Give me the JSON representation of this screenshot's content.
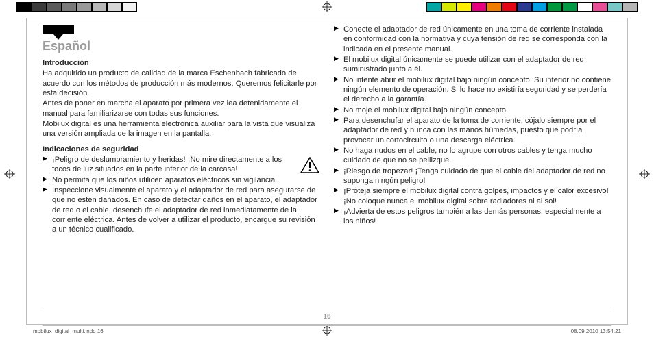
{
  "colorbar": {
    "left": [
      "#000000",
      "#3a3a3a",
      "#5b5b5b",
      "#7a7a7a",
      "#9a9a9a",
      "#b8b8b8",
      "#d6d6d6",
      "#f2f2f2"
    ],
    "right": [
      "#00a6a6",
      "#d4e800",
      "#ffee00",
      "#e5007e",
      "#f07c00",
      "#e30613",
      "#2a3a8f",
      "#00a0e3",
      "#00983a",
      "#009a44",
      "#ffffff",
      "#e94f96",
      "#76c9c6",
      "#b5b5b5"
    ]
  },
  "language_title": "Español",
  "intro": {
    "heading": "Introducción",
    "p1": "Ha adquirido un producto de calidad de la marca Eschenbach fabricado de acuerdo con los métodos de producción más modernos. Queremos felicitarle por esta decisión.",
    "p2": "Antes de poner en marcha el aparato por primera vez lea detenidamente el manual para familiarizarse con todas sus funciones.",
    "p3": "Mobilux digital es una herramienta electrónica auxiliar para la vista que visualiza una versión ampliada de la imagen en la pantalla."
  },
  "safety": {
    "heading": "Indicaciones de seguridad",
    "left_items": [
      "¡Peligro de deslumbramiento y heridas! ¡No mire directamente a los focos de luz situados en la parte inferior de la carcasa!",
      "No permita que los niños utilicen aparatos eléctricos sin vigilancia.",
      "Inspeccione visualmente el aparato y el adaptador de red para asegurarse de que no estén dañados. En caso de detectar daños en el aparato, el adaptador de red o el cable, desenchufe el adaptador de red inmediatamente de la corriente eléctrica. Antes de volver a utilizar el producto, encargue su revisión a un técnico cualificado."
    ],
    "right_items": [
      "Conecte el adaptador de red únicamente en una toma de corriente instalada en conformidad con la normativa y cuya tensión de red se corresponda con la indicada en el presente manual.",
      "El mobilux digital únicamente se puede utilizar con el adaptador de red suministrado junto a él.",
      "No intente abrir el mobilux digital bajo ningún concepto. Su interior no contiene ningún elemento de operación. Si lo hace no existiría seguridad y se perdería el derecho a la garantía.",
      "No moje el mobilux digital bajo ningún concepto.",
      "Para desenchufar el aparato de la toma de corriente, cójalo siempre por el adaptador de red y nunca con las manos húmedas, puesto que podría provocar un cortocircuito o una descarga eléctrica.",
      "No haga nudos en el cable, no lo agrupe con otros cables y tenga mucho cuidado de que no se pellizque.",
      "¡Riesgo de tropezar! ¡Tenga cuidado de que el cable del adaptador de red no suponga ningún peligro!",
      "¡Proteja siempre el mobilux digital contra golpes, impactos y el calor excesivo! ¡No coloque nunca el mobilux digital sobre radiadores ni al sol!",
      "¡Advierta de estos peligros también a las demás personas, especialmente a los niños!"
    ]
  },
  "page_number": "16",
  "footer": {
    "left": "mobilux_digital_multi.indd   16",
    "right": "08.09.2010   13:54:21"
  }
}
